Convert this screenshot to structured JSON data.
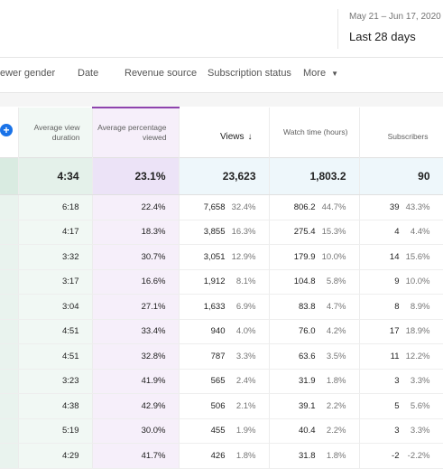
{
  "header": {
    "date_range": "May 21 – Jun 17, 2020",
    "period_label": "Last 28 days"
  },
  "filters": {
    "viewer_gender": "ewer gender",
    "date": "Date",
    "revenue_source": "Revenue source",
    "subscription_status": "Subscription status",
    "more": "More"
  },
  "columns": {
    "avg_view_duration": "Average view duration",
    "avg_pct_viewed": "Average percentage viewed",
    "views": "Views",
    "watch_time": "Watch time (hours)",
    "subscribers": "Subscribers"
  },
  "totals": {
    "avg_view_duration": "4:34",
    "avg_pct_viewed": "23.1%",
    "views": "23,623",
    "watch_time": "1,803.2",
    "subscribers": "90"
  },
  "rows": [
    {
      "dur": "6:18",
      "pctv": "22.4%",
      "views": "7,658",
      "views_pct": "32.4%",
      "wt": "806.2",
      "wt_pct": "44.7%",
      "subs": "39",
      "subs_pct": "43.3%"
    },
    {
      "dur": "4:17",
      "pctv": "18.3%",
      "views": "3,855",
      "views_pct": "16.3%",
      "wt": "275.4",
      "wt_pct": "15.3%",
      "subs": "4",
      "subs_pct": "4.4%"
    },
    {
      "dur": "3:32",
      "pctv": "30.7%",
      "views": "3,051",
      "views_pct": "12.9%",
      "wt": "179.9",
      "wt_pct": "10.0%",
      "subs": "14",
      "subs_pct": "15.6%"
    },
    {
      "dur": "3:17",
      "pctv": "16.6%",
      "views": "1,912",
      "views_pct": "8.1%",
      "wt": "104.8",
      "wt_pct": "5.8%",
      "subs": "9",
      "subs_pct": "10.0%"
    },
    {
      "dur": "3:04",
      "pctv": "27.1%",
      "views": "1,633",
      "views_pct": "6.9%",
      "wt": "83.8",
      "wt_pct": "4.7%",
      "subs": "8",
      "subs_pct": "8.9%"
    },
    {
      "dur": "4:51",
      "pctv": "33.4%",
      "views": "940",
      "views_pct": "4.0%",
      "wt": "76.0",
      "wt_pct": "4.2%",
      "subs": "17",
      "subs_pct": "18.9%"
    },
    {
      "dur": "4:51",
      "pctv": "32.8%",
      "views": "787",
      "views_pct": "3.3%",
      "wt": "63.6",
      "wt_pct": "3.5%",
      "subs": "11",
      "subs_pct": "12.2%"
    },
    {
      "dur": "3:23",
      "pctv": "41.9%",
      "views": "565",
      "views_pct": "2.4%",
      "wt": "31.9",
      "wt_pct": "1.8%",
      "subs": "3",
      "subs_pct": "3.3%"
    },
    {
      "dur": "4:38",
      "pctv": "42.9%",
      "views": "506",
      "views_pct": "2.1%",
      "wt": "39.1",
      "wt_pct": "2.2%",
      "subs": "5",
      "subs_pct": "5.6%"
    },
    {
      "dur": "5:19",
      "pctv": "30.0%",
      "views": "455",
      "views_pct": "1.9%",
      "wt": "40.4",
      "wt_pct": "2.2%",
      "subs": "3",
      "subs_pct": "3.3%"
    },
    {
      "dur": "4:29",
      "pctv": "41.7%",
      "views": "426",
      "views_pct": "1.8%",
      "wt": "31.8",
      "wt_pct": "1.8%",
      "subs": "-2",
      "subs_pct": "-2.2%"
    }
  ],
  "colors": {
    "accent_blue": "#1a73e8",
    "percentage_column_accent": "#8e44ad"
  },
  "icons": {
    "add_column": "plus-icon",
    "sort": "arrow-down-icon",
    "more_menu": "caret-down-icon"
  }
}
